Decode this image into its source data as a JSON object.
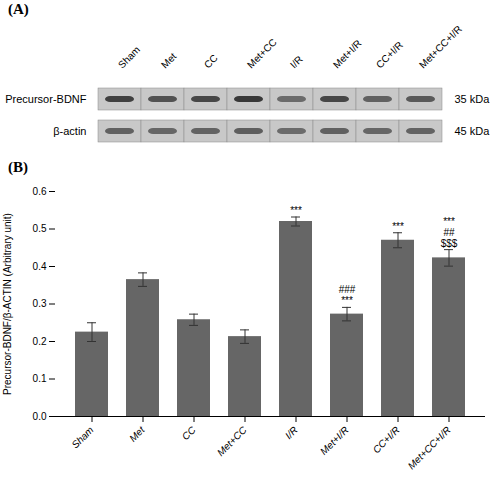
{
  "chart_data": [
    {
      "type": "blot",
      "title": "(A)",
      "categories": [
        "Sham",
        "Met",
        "CC",
        "Met+CC",
        "I/R",
        "Met+I/R",
        "CC+I/R",
        "Met+CC+I/R"
      ],
      "color": "#c8c8c8",
      "series": [
        {
          "name": "Precursor-BDNF",
          "annotation": "35 kDa",
          "values": [
            0.25,
            0.32,
            0.28,
            0.22,
            0.42,
            0.28,
            0.38,
            0.35
          ]
        },
        {
          "name": "β-actin",
          "annotation": "45 kDa",
          "values": [
            0.38,
            0.4,
            0.39,
            0.37,
            0.42,
            0.38,
            0.4,
            0.39
          ]
        }
      ]
    },
    {
      "type": "bar",
      "title": "(B)",
      "categories": [
        "Sham",
        "Met",
        "CC",
        "Met+CC",
        "I/R",
        "Met+I/R",
        "CC+I/R",
        "Met+CC+I/R"
      ],
      "values": [
        0.225,
        0.365,
        0.258,
        0.213,
        0.52,
        0.273,
        0.47,
        0.423
      ],
      "errors": [
        0.025,
        0.018,
        0.015,
        0.018,
        0.012,
        0.018,
        0.02,
        0.022
      ],
      "annotations": [
        [],
        [],
        [],
        [],
        [
          "***"
        ],
        [
          "***",
          "###"
        ],
        [
          "***"
        ],
        [
          "$$$",
          "##",
          "***"
        ]
      ],
      "color": "#666666",
      "ylabel": "Precursor-BDNF/β-ACTIN (Arbitrary unit)",
      "ylim": [
        0,
        0.6
      ],
      "yticks": [
        {
          "value": 0,
          "label": "0.0"
        },
        0.1,
        0.2,
        0.3,
        0.4,
        0.5,
        0.6
      ]
    }
  ]
}
